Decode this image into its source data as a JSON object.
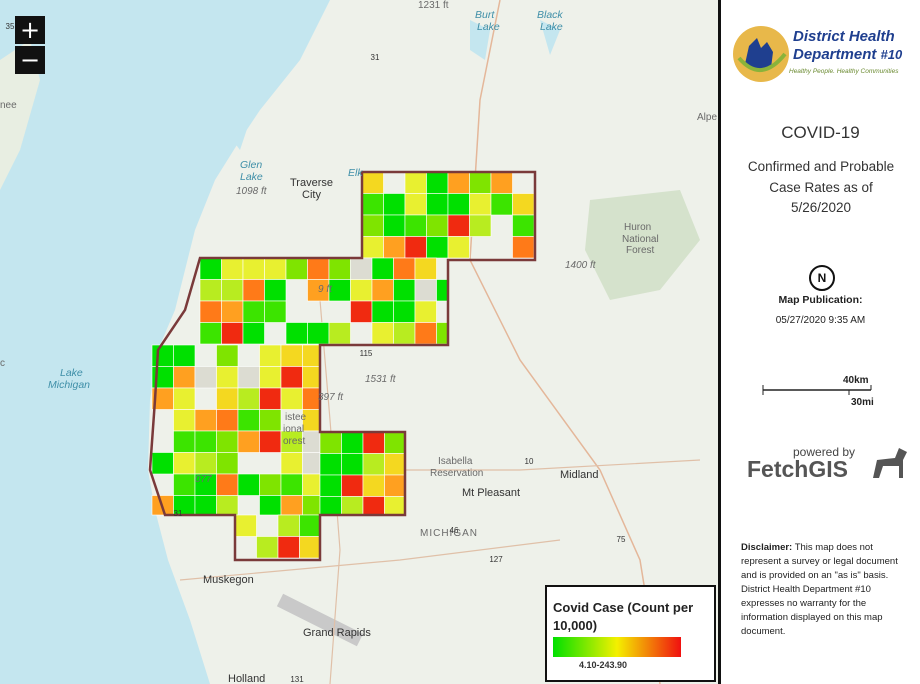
{
  "zoom": {
    "in": "+",
    "out": "−"
  },
  "map": {
    "labels": [
      "1231 ft",
      "Burt",
      "Lake",
      "Black",
      "Lake",
      "35",
      "31",
      "Alpe",
      "nee",
      "Glen",
      "Lake",
      "1098 ft",
      "Traverse",
      "City",
      "Elk",
      "Huron",
      "National",
      "Forest",
      "1400 ft",
      "9 ft",
      "Lake",
      "Michigan",
      "c",
      "115",
      "1531 ft",
      "397 ft",
      "istee",
      "ional",
      "orest",
      "077",
      "Isabella",
      "Reservation",
      "10",
      "Midland",
      "Mt Pleasant",
      "MICHIGAN",
      "46",
      "127",
      "75",
      "31",
      "Muskegon",
      "Grand Rapids",
      "Holland",
      "131"
    ]
  },
  "legend": {
    "title": "Covid Case (Count per 10,000)",
    "range": "4.10-243.90"
  },
  "sidebar": {
    "org_name": "District Health Department",
    "org_number": "#10",
    "tagline": "Healthy People. Healthy Communities",
    "title": "COVID-19",
    "subtitle": "Confirmed and Probable Case Rates as of 5/26/2020",
    "north": "N",
    "publication_label": "Map Publication:",
    "publication_date": "05/27/2020 9:35 AM",
    "scale_km": "40km",
    "scale_mi": "30mi",
    "powered_by": "powered by",
    "brand": "FetchGIS",
    "disclaimer_label": "Disclaimer:",
    "disclaimer_text": "This map does not represent a survey or legal document and is provided on an \"as is\" basis. District Health Department #10 expresses no warranty for the information displayed on this map document."
  }
}
